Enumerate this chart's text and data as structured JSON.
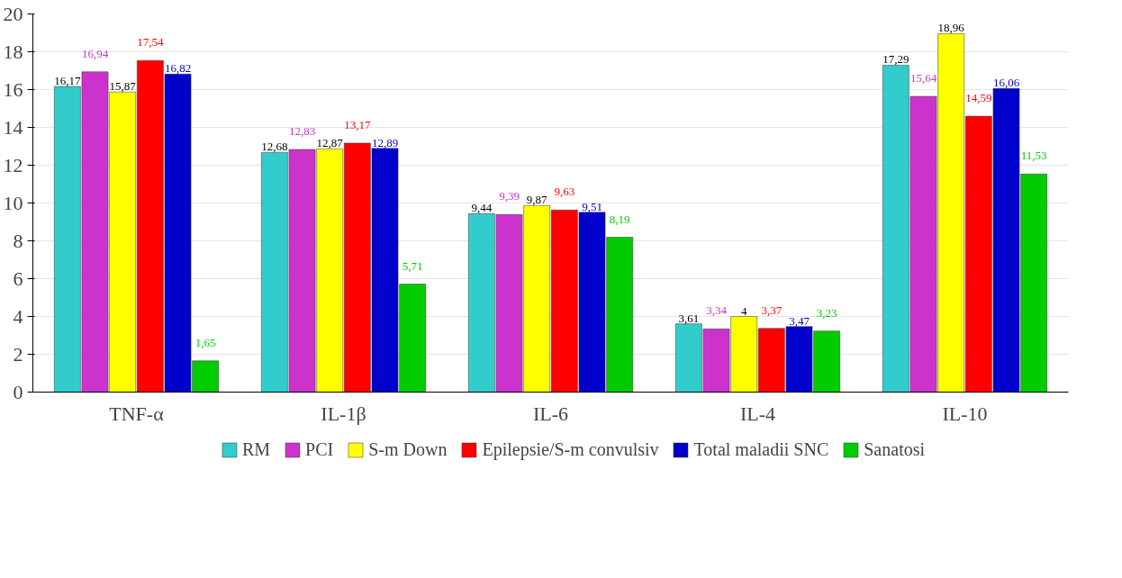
{
  "chart_data": {
    "type": "bar",
    "categories": [
      "TNF-α",
      "IL-1β",
      "IL-6",
      "IL-4",
      "IL-10"
    ],
    "series": [
      {
        "name": "RM",
        "color": "#33cccc",
        "values": [
          16.17,
          12.68,
          9.44,
          3.61,
          17.29
        ],
        "value_labels": [
          "16,17",
          "12,68",
          "9,44",
          "3,61",
          "17,29"
        ]
      },
      {
        "name": "PCI",
        "color": "#cc33cc",
        "values": [
          16.94,
          12.83,
          9.39,
          3.34,
          15.64
        ],
        "value_labels": [
          "16,94",
          "12,83",
          "9,39",
          "3,34",
          "15,64"
        ]
      },
      {
        "name": "S-m Down",
        "color": "#ffff00",
        "values": [
          15.87,
          12.87,
          9.87,
          4,
          18.96
        ],
        "value_labels": [
          "15,87",
          "12,87",
          "9,87",
          "4",
          "18,96"
        ]
      },
      {
        "name": "Epilepsie/S-m convulsiv",
        "color": "#ff0000",
        "values": [
          17.54,
          13.17,
          9.63,
          3.37,
          14.59
        ],
        "value_labels": [
          "17,54",
          "13,17",
          "9,63",
          "3,37",
          "14,59"
        ]
      },
      {
        "name": "Total maladii SNC",
        "color": "#0000cc",
        "values": [
          16.82,
          12.89,
          9.51,
          3.47,
          16.06
        ],
        "value_labels": [
          "16,82",
          "12,89",
          "9,51",
          "3,47",
          "16,06"
        ]
      },
      {
        "name": "Sanatosi",
        "color": "#00cc00",
        "values": [
          1.65,
          5.71,
          8.19,
          3.23,
          11.53
        ],
        "value_labels": [
          "1,65",
          "5,71",
          "8,19",
          "3,23",
          "11,53"
        ]
      }
    ],
    "ylim": [
      0,
      20
    ],
    "yticks": [
      0,
      2,
      4,
      6,
      8,
      10,
      12,
      14,
      16,
      18,
      20
    ],
    "grid": "y",
    "legend": "bottom"
  }
}
